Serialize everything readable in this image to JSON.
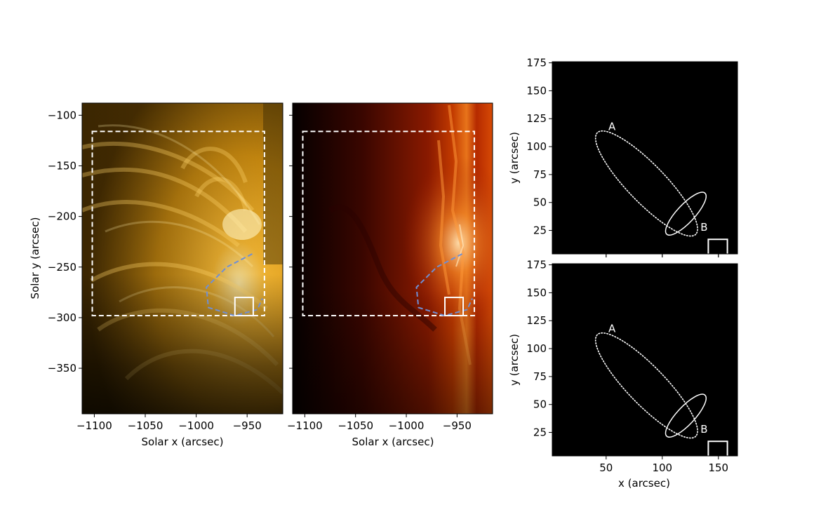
{
  "chart_data": [
    {
      "type": "image",
      "panel": "left",
      "colormap": "sdoaia171 (gold)",
      "xlabel": "Solar x (arcsec)",
      "ylabel": "Solar y (arcsec)",
      "xlim": [
        -1112,
        -915
      ],
      "ylim": [
        -395,
        -88
      ],
      "xticks": [
        -1100,
        -1050,
        -1000,
        -950
      ],
      "xtick_labels": [
        "−1100",
        "−1050",
        "−1000",
        "−950"
      ],
      "yticks": [
        -100,
        -150,
        -200,
        -250,
        -300,
        -350
      ],
      "ytick_labels": [
        "−100",
        "−150",
        "−200",
        "−250",
        "−300",
        "−350"
      ],
      "dashed_box": {
        "x": [
          -1102,
          -933
        ],
        "y": [
          -298,
          -116
        ]
      },
      "small_box": {
        "x": [
          -962,
          -944
        ],
        "y": [
          -298,
          -280
        ]
      },
      "loop_trace": [
        [
          -945,
          -237
        ],
        [
          -970,
          -250
        ],
        [
          -990,
          -270
        ],
        [
          -988,
          -290
        ],
        [
          -962,
          -298
        ],
        [
          -940,
          -292
        ],
        [
          -935,
          -281
        ]
      ],
      "line_colors": {
        "box": "#ffffff",
        "loop": "#6f8fd6"
      }
    },
    {
      "type": "image",
      "panel": "middle",
      "colormap": "sdoaia304 (red)",
      "xlabel": "Solar x (arcsec)",
      "xlim": [
        -1112,
        -915
      ],
      "ylim": [
        -395,
        -88
      ],
      "xticks": [
        -1100,
        -1050,
        -1000,
        -950
      ],
      "xtick_labels": [
        "−1100",
        "−1050",
        "−1000",
        "−950"
      ],
      "dashed_box": {
        "x": [
          -1102,
          -933
        ],
        "y": [
          -298,
          -116
        ]
      },
      "small_box": {
        "x": [
          -962,
          -944
        ],
        "y": [
          -298,
          -280
        ]
      },
      "loop_trace": [
        [
          -945,
          -237
        ],
        [
          -970,
          -250
        ],
        [
          -990,
          -270
        ],
        [
          -988,
          -290
        ],
        [
          -962,
          -298
        ],
        [
          -940,
          -292
        ],
        [
          -935,
          -281
        ]
      ],
      "line_colors": {
        "box": "#ffffff",
        "loop": "#6f8fd6"
      }
    },
    {
      "type": "image",
      "panel": "top-right",
      "ylabel": "y (arcsec)",
      "xlim": [
        2,
        167
      ],
      "ylim": [
        4,
        176
      ],
      "xticks": [
        50,
        100,
        150
      ],
      "yticks": [
        25,
        50,
        75,
        100,
        125,
        150,
        175
      ],
      "ytick_labels": [
        "25",
        "50",
        "75",
        "100",
        "125",
        "150",
        "175"
      ],
      "ellipses": [
        {
          "label": "A",
          "center": [
            86,
            67
          ],
          "semi_major": 63,
          "semi_minor": 17,
          "angle_deg": -46,
          "style": "dotted"
        },
        {
          "label": "B",
          "center": [
            121,
            40
          ],
          "semi_major": 25,
          "semi_minor": 8,
          "angle_deg": 47,
          "style": "solid"
        }
      ],
      "corner_box": {
        "x": [
          141,
          158
        ],
        "y": [
          4,
          17
        ]
      }
    },
    {
      "type": "image",
      "panel": "bottom-right",
      "xlabel": "x (arcsec)",
      "ylabel": "y (arcsec)",
      "xlim": [
        2,
        167
      ],
      "ylim": [
        4,
        176
      ],
      "xticks": [
        50,
        100,
        150
      ],
      "xtick_labels": [
        "50",
        "100",
        "150"
      ],
      "yticks": [
        25,
        50,
        75,
        100,
        125,
        150,
        175
      ],
      "ytick_labels": [
        "25",
        "50",
        "75",
        "100",
        "125",
        "150",
        "175"
      ],
      "ellipses": [
        {
          "label": "A",
          "center": [
            86,
            67
          ],
          "semi_major": 63,
          "semi_minor": 17,
          "angle_deg": -46,
          "style": "dotted"
        },
        {
          "label": "B",
          "center": [
            121,
            40
          ],
          "semi_major": 25,
          "semi_minor": 8,
          "angle_deg": 47,
          "style": "solid"
        }
      ],
      "corner_box": {
        "x": [
          141,
          158
        ],
        "y": [
          4,
          17
        ]
      }
    }
  ]
}
